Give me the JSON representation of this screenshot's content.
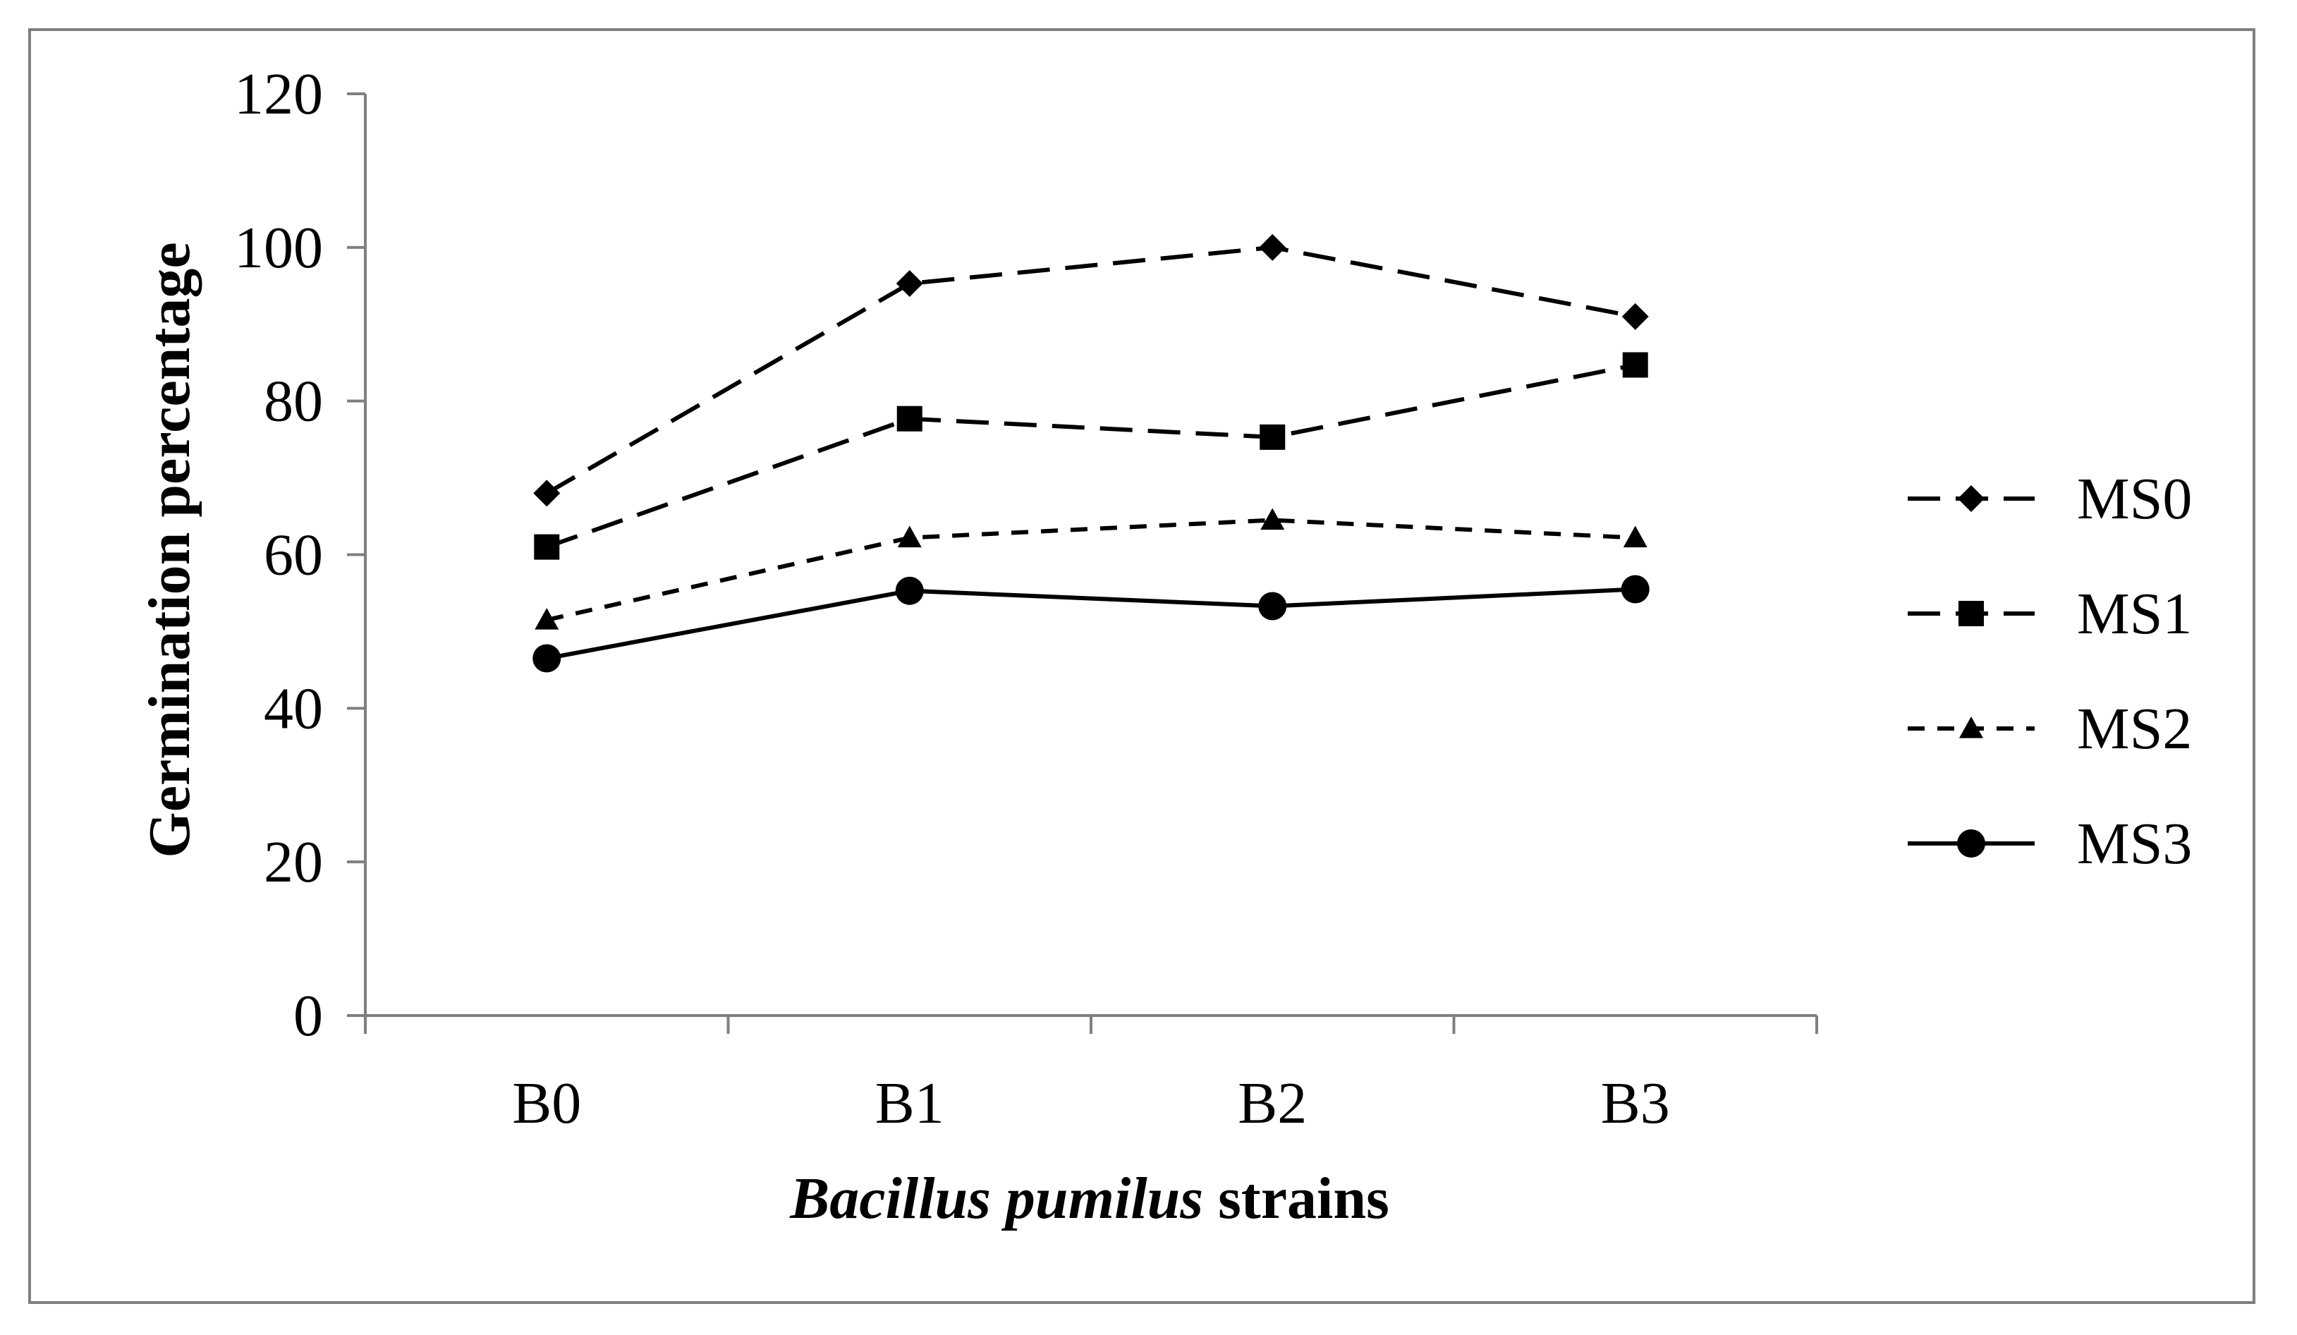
{
  "chart_data": {
    "type": "line",
    "categories": [
      "B0",
      "B1",
      "B2",
      "B3"
    ],
    "xlabel_italic": "Bacillus pumilus",
    "xlabel_rest": " strains",
    "ylabel": "Germination percentage",
    "ylim": [
      0,
      120
    ],
    "yticks": [
      "0",
      "20",
      "40",
      "60",
      "80",
      "100",
      "120"
    ],
    "grid": false,
    "legend_position": "right",
    "series": [
      {
        "name": "MS0",
        "values": [
          68,
          95.3,
          100,
          91
        ],
        "marker": "diamond",
        "dash": "long-dash",
        "color": "#000000"
      },
      {
        "name": "MS1",
        "values": [
          61,
          77.7,
          75.3,
          84.7
        ],
        "marker": "square",
        "dash": "long-dash",
        "color": "#000000"
      },
      {
        "name": "MS2",
        "values": [
          51.5,
          62.2,
          64.5,
          62.2
        ],
        "marker": "triangle",
        "dash": "short-dash",
        "color": "#000000"
      },
      {
        "name": "MS3",
        "values": [
          46.5,
          55.3,
          53.3,
          55.5
        ],
        "marker": "circle",
        "dash": "solid",
        "color": "#000000"
      }
    ]
  }
}
